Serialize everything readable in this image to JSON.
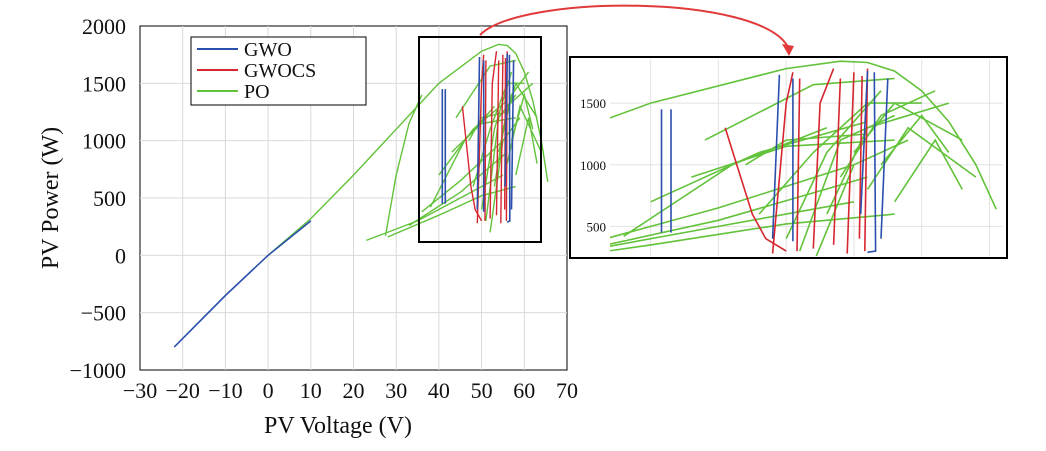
{
  "chart_data": [
    {
      "type": "line",
      "panel": "main",
      "xlabel": "PV Voltage (V)",
      "ylabel": "PV Power (W)",
      "xlim": [
        -30,
        70
      ],
      "ylim": [
        -1000,
        2000
      ],
      "x_ticks": [
        "−30",
        "−20",
        "−10",
        "0",
        "10",
        "20",
        "30",
        "40",
        "50",
        "60",
        "70"
      ],
      "y_ticks": [
        "2000",
        "1500",
        "1000",
        "500",
        "0",
        "−500",
        "−1000"
      ],
      "grid": true,
      "legend_position": "top-left",
      "colors": {
        "GWO": "#2b4fad",
        "GWOCS": "#d6262f",
        "PO": "#62c23a",
        "zoom_box": "#000000",
        "zoom_arrow": "#e03a3a"
      },
      "series": [
        {
          "name": "GWO",
          "segments": [
            [
              [
                -22,
                -800
              ],
              [
                -10,
                -350
              ],
              [
                0,
                0
              ],
              [
                10,
                300
              ]
            ],
            [
              [
                40.8,
                450
              ],
              [
                40.8,
                1450
              ]
            ],
            [
              [
                41.5,
                450
              ],
              [
                41.5,
                1450
              ]
            ],
            [
              [
                49,
                400
              ],
              [
                49.5,
                1730
              ]
            ],
            [
              [
                50.5,
                380
              ],
              [
                50.5,
                1700
              ]
            ],
            [
              [
                55.5,
                600
              ],
              [
                56,
                1760
              ]
            ],
            [
              [
                57,
                400
              ],
              [
                57.5,
                1700
              ]
            ],
            [
              [
                56,
                290
              ],
              [
                56.6,
                300
              ],
              [
                56.5,
                1750
              ]
            ]
          ]
        },
        {
          "name": "GWOCS",
          "segments": [
            [
              [
                45.5,
                1300
              ],
              [
                46.5,
                950
              ],
              [
                47.5,
                600
              ],
              [
                48.5,
                400
              ],
              [
                50,
                300
              ]
            ],
            [
              [
                49,
                280
              ],
              [
                50,
                1500
              ],
              [
                50.5,
                1750
              ]
            ],
            [
              [
                50.8,
                300
              ],
              [
                51,
                1700
              ]
            ],
            [
              [
                52,
                320
              ],
              [
                52.5,
                1500
              ],
              [
                53.5,
                1780
              ]
            ],
            [
              [
                53.5,
                350
              ],
              [
                54,
                1700
              ]
            ],
            [
              [
                54.5,
                280
              ],
              [
                55,
                1750
              ]
            ],
            [
              [
                55.4,
                400
              ],
              [
                55.6,
                1720
              ]
            ],
            [
              [
                55.8,
                300
              ],
              [
                56,
                1780
              ]
            ]
          ]
        },
        {
          "name": "PO",
          "segments": [
            [
              [
                0,
                0
              ],
              [
                10,
                320
              ],
              [
                20,
                700
              ],
              [
                30,
                1100
              ],
              [
                40,
                1500
              ],
              [
                50,
                1780
              ],
              [
                54,
                1840
              ],
              [
                56,
                1830
              ],
              [
                58,
                1760
              ],
              [
                60,
                1600
              ],
              [
                62,
                1350
              ],
              [
                64,
                1000
              ],
              [
                65.5,
                640
              ]
            ],
            [
              [
                23,
                130
              ],
              [
                35,
                300
              ],
              [
                45,
                500
              ],
              [
                55,
                700
              ]
            ],
            [
              [
                27.5,
                170
              ],
              [
                30,
                700
              ],
              [
                33,
                1150
              ],
              [
                36,
                1400
              ]
            ],
            [
              [
                28,
                160
              ],
              [
                40,
                350
              ],
              [
                50,
                520
              ],
              [
                58,
                600
              ]
            ],
            [
              [
                33,
                260
              ],
              [
                45,
                550
              ],
              [
                56,
                900
              ]
            ],
            [
              [
                36,
                380
              ],
              [
                45,
                650
              ],
              [
                55,
                1000
              ]
            ],
            [
              [
                38,
                420
              ],
              [
                46,
                1000
              ],
              [
                53,
                1300
              ]
            ],
            [
              [
                40,
                700
              ],
              [
                48,
                1100
              ],
              [
                56,
                1350
              ]
            ],
            [
              [
                43,
                900
              ],
              [
                50,
                1150
              ],
              [
                58,
                1200
              ]
            ],
            [
              [
                44,
                1200
              ],
              [
                52,
                1650
              ],
              [
                58,
                1700
              ]
            ],
            [
              [
                47,
                1000
              ],
              [
                50,
                1200
              ],
              [
                56,
                1250
              ]
            ],
            [
              [
                48,
                600
              ],
              [
                52,
                1100
              ],
              [
                56,
                1500
              ],
              [
                60,
                1500
              ]
            ],
            [
              [
                50,
                400
              ],
              [
                53,
                1100
              ],
              [
                57,
                1600
              ]
            ],
            [
              [
                51,
                300
              ],
              [
                54,
                1200
              ],
              [
                58,
                1400
              ]
            ],
            [
              [
                52,
                200
              ],
              [
                55,
                1000
              ],
              [
                59,
                1200
              ]
            ],
            [
              [
                53,
                600
              ],
              [
                56,
                1300
              ],
              [
                62,
                1500
              ]
            ],
            [
              [
                54,
                900
              ],
              [
                57,
                1400
              ],
              [
                61,
                1600
              ]
            ],
            [
              [
                55,
                1100
              ],
              [
                58,
                1500
              ],
              [
                63,
                1200
              ]
            ],
            [
              [
                56,
                800
              ],
              [
                59,
                1300
              ],
              [
                64,
                900
              ]
            ],
            [
              [
                57,
                1000
              ],
              [
                60,
                1400
              ],
              [
                62,
                1100
              ]
            ],
            [
              [
                58,
                700
              ],
              [
                61,
                1200
              ],
              [
                63,
                800
              ]
            ]
          ]
        }
      ],
      "zoom_box": {
        "x_range": [
          37.5,
          65.5
        ],
        "y_range": [
          100,
          1900
        ]
      }
    },
    {
      "type": "line",
      "panel": "inset",
      "y_ticks": [
        "1500",
        "1000",
        "500"
      ],
      "ylim": [
        260,
        1850
      ],
      "xlim": [
        37,
        66
      ],
      "series_ref": [
        "GWO",
        "GWOCS",
        "PO"
      ]
    }
  ],
  "legend": [
    "GWO",
    "GWOCS",
    "PO"
  ]
}
